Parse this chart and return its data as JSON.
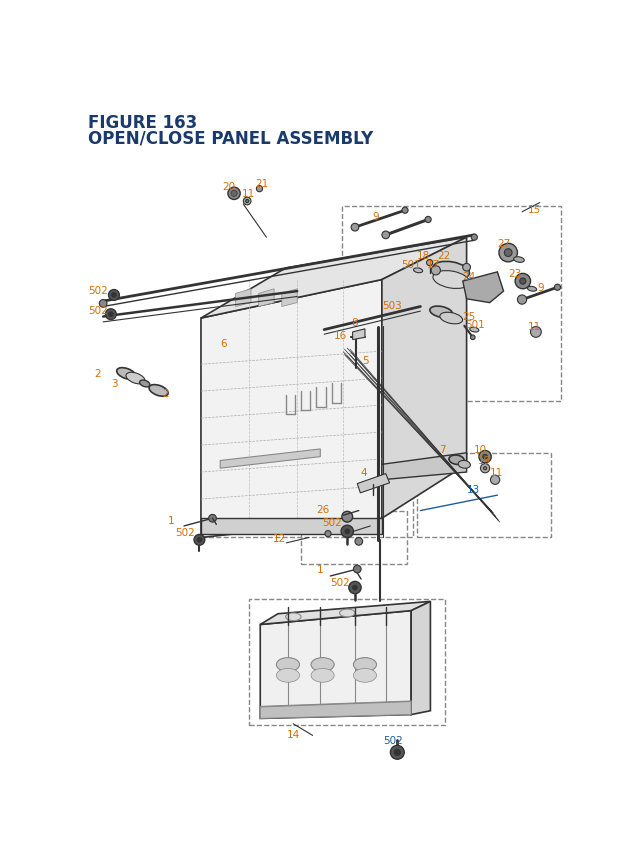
{
  "title_line1": "FIGURE 163",
  "title_line2": "OPEN/CLOSE PANEL ASSEMBLY",
  "title_color": "#1a3a6b",
  "bg_color": "#ffffff",
  "oc": "#d4700a",
  "bc": "#1a5fa0",
  "lc": "#333333",
  "dc": "#666666"
}
